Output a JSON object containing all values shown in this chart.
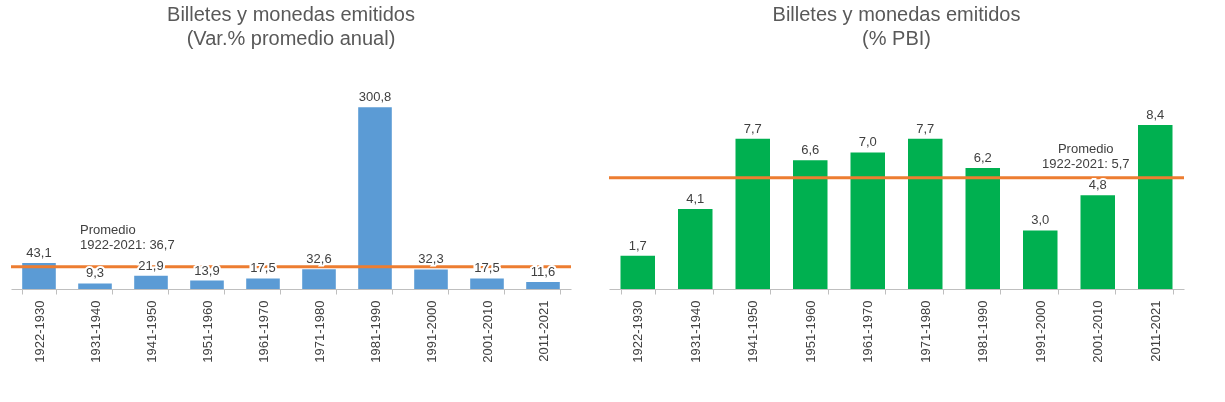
{
  "chart_data": [
    {
      "type": "bar",
      "title": "Billetes y monedas emitidos",
      "subtitle": "(Var.% promedio anual)",
      "categories": [
        "1922-1930",
        "1931-1940",
        "1941-1950",
        "1951-1960",
        "1961-1970",
        "1971-1980",
        "1981-1990",
        "1991-2000",
        "2001-2010",
        "2011-2021"
      ],
      "values": [
        43.1,
        9.3,
        21.9,
        13.9,
        17.5,
        32.6,
        300.8,
        32.3,
        17.5,
        11.6
      ],
      "value_labels": [
        "43,1",
        "9,3",
        "21,9",
        "13,9",
        "17,5",
        "32,6",
        "300,8",
        "32,3",
        "17,5",
        "11,6"
      ],
      "color": "#5b9bd5",
      "ref_lines": [
        {
          "axis": "y",
          "value": 36.7,
          "label": "Promedio\n1922-2021: 36,7",
          "color": "#ed7d31"
        }
      ]
    },
    {
      "type": "bar",
      "title": "Billetes y monedas emitidos",
      "subtitle": "(% PBI)",
      "categories": [
        "1922-1930",
        "1931-1940",
        "1941-1950",
        "1951-1960",
        "1961-1970",
        "1971-1980",
        "1981-1990",
        "1991-2000",
        "2001-2010",
        "2011-2021"
      ],
      "values": [
        1.7,
        4.1,
        7.7,
        6.6,
        7.0,
        7.7,
        6.2,
        3.0,
        4.8,
        8.4
      ],
      "value_labels": [
        "1,7",
        "4,1",
        "7,7",
        "6,6",
        "7,0",
        "7,7",
        "6,2",
        "3,0",
        "4,8",
        "8,4"
      ],
      "color": "#00b050",
      "ref_lines": [
        {
          "axis": "y",
          "value": 5.7,
          "label": "Promedio\n1922-2021: 5,7",
          "color": "#ed7d31"
        }
      ]
    }
  ]
}
